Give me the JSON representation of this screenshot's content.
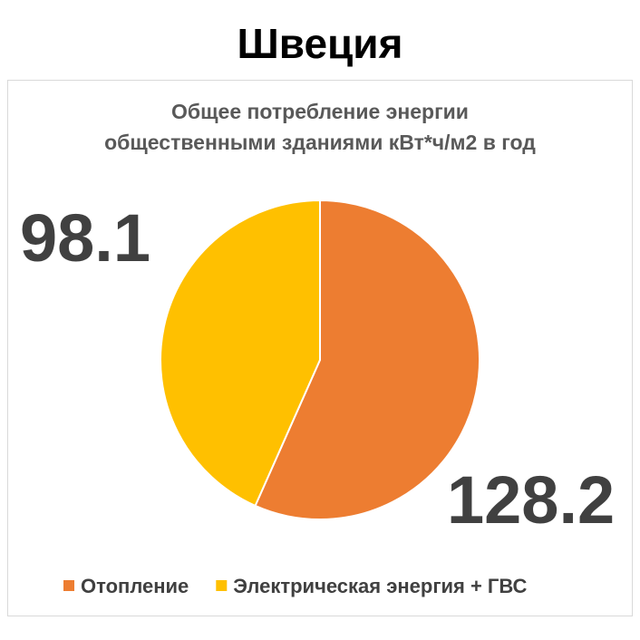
{
  "header": {
    "title": "Швеция"
  },
  "chart_data": {
    "type": "pie",
    "title": [
      "Общее потребление энергии",
      "общественными зданиями кВт*ч/м2 в год"
    ],
    "categories": [
      "Отопление",
      "Электрическая энергия + ГВС"
    ],
    "values": [
      128.2,
      98.1
    ],
    "colors": [
      "#ED7D31",
      "#FFC000"
    ],
    "legend": "bottom"
  }
}
